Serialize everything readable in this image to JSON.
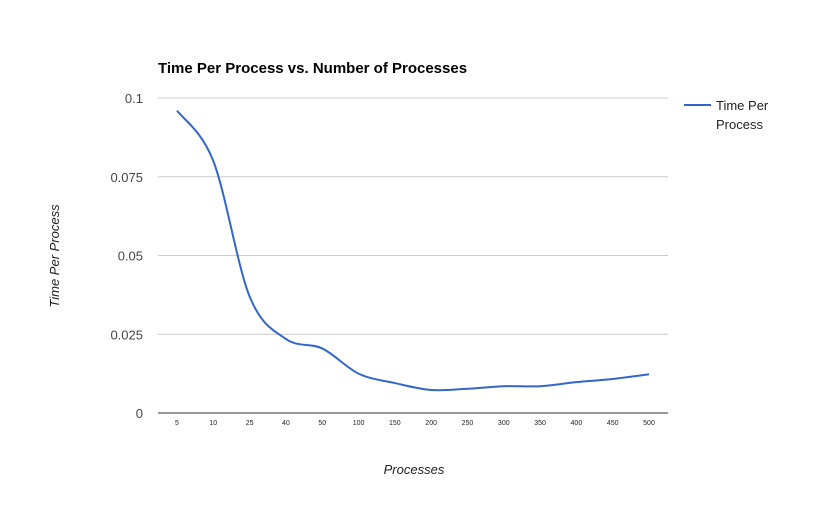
{
  "chart_data": {
    "type": "line",
    "title": "Time Per Process vs. Number of Processes",
    "xlabel": "Processes",
    "ylabel": "Time Per Process",
    "categories": [
      "5",
      "10",
      "25",
      "40",
      "50",
      "100",
      "150",
      "200",
      "250",
      "300",
      "350",
      "400",
      "450",
      "500"
    ],
    "series": [
      {
        "name": "Time Per Process",
        "color": "#3366cc",
        "values": [
          0.096,
          0.08,
          0.037,
          0.0235,
          0.0205,
          0.0125,
          0.0095,
          0.0073,
          0.0077,
          0.0085,
          0.0085,
          0.0098,
          0.0108,
          0.0123
        ]
      }
    ],
    "ylim": [
      0,
      0.1
    ],
    "yticks": [
      "0",
      "0.025",
      "0.05",
      "0.075",
      "0.1"
    ],
    "grid": true,
    "legend_position": "right"
  },
  "colors": {
    "series": "#3366cc",
    "grid": "#cccccc",
    "axis": "#333333"
  }
}
